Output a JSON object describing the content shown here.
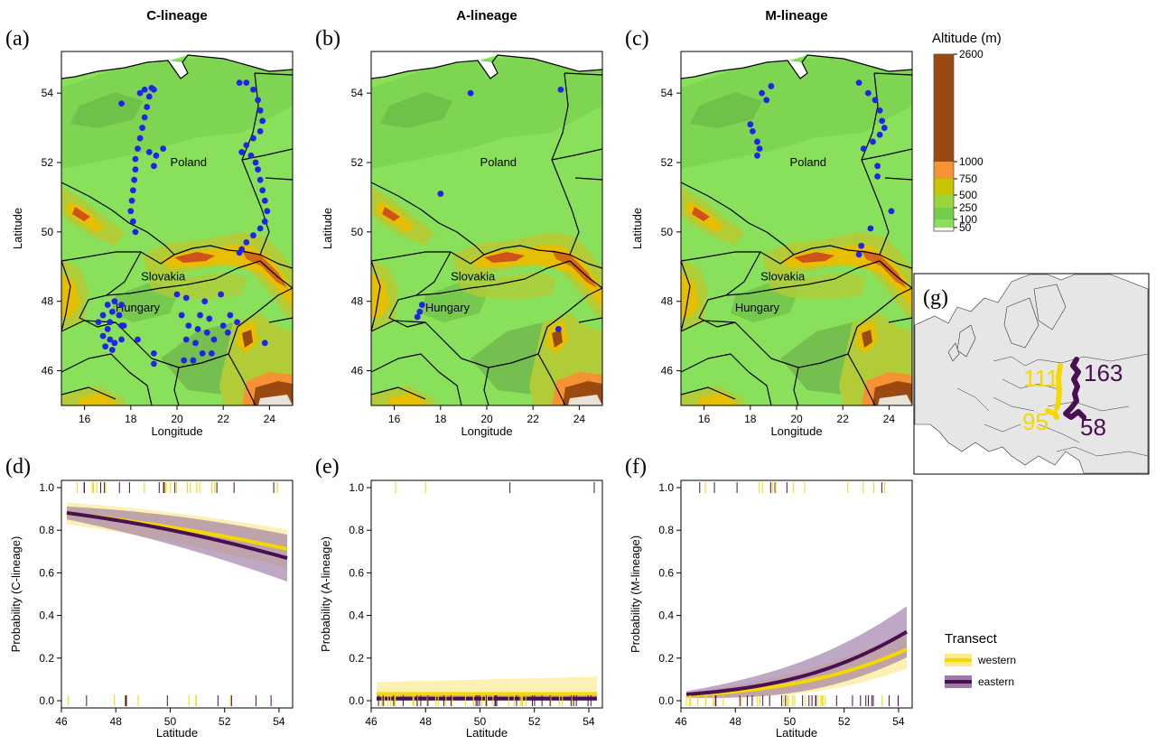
{
  "maps": [
    {
      "letter": "(a)",
      "title": "C-lineage",
      "points": [
        [
          17.6,
          53.7
        ],
        [
          18.4,
          54.0
        ],
        [
          18.6,
          54.1
        ],
        [
          18.9,
          54.15
        ],
        [
          19.0,
          54.1
        ],
        [
          18.8,
          53.9
        ],
        [
          18.7,
          53.6
        ],
        [
          18.6,
          53.3
        ],
        [
          18.5,
          53.0
        ],
        [
          18.4,
          52.7
        ],
        [
          18.3,
          52.4
        ],
        [
          18.2,
          52.1
        ],
        [
          18.2,
          51.8
        ],
        [
          18.15,
          51.5
        ],
        [
          18.1,
          51.2
        ],
        [
          18.05,
          50.9
        ],
        [
          18.0,
          50.6
        ],
        [
          18.1,
          50.3
        ],
        [
          18.2,
          50.0
        ],
        [
          18.8,
          52.3
        ],
        [
          19.1,
          52.2
        ],
        [
          19.4,
          52.4
        ],
        [
          19.0,
          51.9
        ],
        [
          22.7,
          54.3
        ],
        [
          23.0,
          54.3
        ],
        [
          23.3,
          54.1
        ],
        [
          23.5,
          53.8
        ],
        [
          23.6,
          53.5
        ],
        [
          23.7,
          53.2
        ],
        [
          23.6,
          52.9
        ],
        [
          23.3,
          52.7
        ],
        [
          23.0,
          52.5
        ],
        [
          22.8,
          52.3
        ],
        [
          23.2,
          52.2
        ],
        [
          23.4,
          52.0
        ],
        [
          23.5,
          51.8
        ],
        [
          23.6,
          51.5
        ],
        [
          23.7,
          51.2
        ],
        [
          23.8,
          50.9
        ],
        [
          23.9,
          50.6
        ],
        [
          23.8,
          50.3
        ],
        [
          23.6,
          50.1
        ],
        [
          23.3,
          49.9
        ],
        [
          23.0,
          49.7
        ],
        [
          22.8,
          49.5
        ],
        [
          22.7,
          49.4
        ],
        [
          17.0,
          47.9
        ],
        [
          17.3,
          48.0
        ],
        [
          17.6,
          47.9
        ],
        [
          17.2,
          47.7
        ],
        [
          17.5,
          47.6
        ],
        [
          16.8,
          47.6
        ],
        [
          17.1,
          47.4
        ],
        [
          16.6,
          47.4
        ],
        [
          17.0,
          47.2
        ],
        [
          16.8,
          47.0
        ],
        [
          17.1,
          46.9
        ],
        [
          17.3,
          46.8
        ],
        [
          17.6,
          46.9
        ],
        [
          17.2,
          46.6
        ],
        [
          16.9,
          46.7
        ],
        [
          17.6,
          47.3
        ],
        [
          20.0,
          48.2
        ],
        [
          21.2,
          48.0
        ],
        [
          21.9,
          48.2
        ],
        [
          20.4,
          48.1
        ],
        [
          21.0,
          47.6
        ],
        [
          21.4,
          47.5
        ],
        [
          20.5,
          47.3
        ],
        [
          20.9,
          47.2
        ],
        [
          21.3,
          47.1
        ],
        [
          21.6,
          46.9
        ],
        [
          22.0,
          47.3
        ],
        [
          22.3,
          47.6
        ],
        [
          22.6,
          47.4
        ],
        [
          21.1,
          46.5
        ],
        [
          20.7,
          46.3
        ],
        [
          20.3,
          46.3
        ],
        [
          20.2,
          47.6
        ],
        [
          21.5,
          46.5
        ],
        [
          19.0,
          46.2
        ],
        [
          19.0,
          46.5
        ],
        [
          20.4,
          46.9
        ],
        [
          20.8,
          46.8
        ],
        [
          22.2,
          47.1
        ],
        [
          23.8,
          46.8
        ],
        [
          17.7,
          47.3
        ],
        [
          18.3,
          46.9
        ]
      ]
    },
    {
      "letter": "(b)",
      "title": "A-lineage",
      "points": [
        [
          19.3,
          54.0
        ],
        [
          23.2,
          54.1
        ],
        [
          18.0,
          51.1
        ],
        [
          17.2,
          47.9
        ],
        [
          17.1,
          47.7
        ],
        [
          17.0,
          47.55
        ],
        [
          23.1,
          47.2
        ]
      ]
    },
    {
      "letter": "(c)",
      "title": "M-lineage",
      "points": [
        [
          18.5,
          54.0
        ],
        [
          18.9,
          54.2
        ],
        [
          18.7,
          53.8
        ],
        [
          18.0,
          53.1
        ],
        [
          18.1,
          52.9
        ],
        [
          18.3,
          52.6
        ],
        [
          18.4,
          52.4
        ],
        [
          18.3,
          52.2
        ],
        [
          22.7,
          54.3
        ],
        [
          23.1,
          54.0
        ],
        [
          23.4,
          53.8
        ],
        [
          23.6,
          53.5
        ],
        [
          23.7,
          53.2
        ],
        [
          23.8,
          53.0
        ],
        [
          23.6,
          52.8
        ],
        [
          23.3,
          52.6
        ],
        [
          22.9,
          52.4
        ],
        [
          23.5,
          51.9
        ],
        [
          23.5,
          51.6
        ],
        [
          24.1,
          50.6
        ],
        [
          23.2,
          50.1
        ],
        [
          22.8,
          49.6
        ],
        [
          22.7,
          49.35
        ]
      ]
    }
  ],
  "map_axes": {
    "xlabel": "Longitude",
    "ylabel": "Latitude",
    "xticks": [
      "16",
      "18",
      "20",
      "22",
      "24"
    ],
    "yticks": [
      "46",
      "48",
      "50",
      "52",
      "54"
    ],
    "countries": [
      "Poland",
      "Slovakia",
      "Hungary"
    ]
  },
  "altitude_legend": {
    "title": "Altitude (m)",
    "breaks": [
      "2600",
      "1000",
      "750",
      "500",
      "250",
      "100",
      "50"
    ],
    "colors": {
      "50": "#f4f9ec",
      "100": "#89e05a",
      "250": "#74cc4c",
      "500": "#b2cc38",
      "750": "#e6bf00",
      "1000": "#f59233",
      "2600": "#9a4a10"
    }
  },
  "inset": {
    "letter": "(g)",
    "western_counts": [
      "111",
      "95"
    ],
    "eastern_counts": [
      "163",
      "58"
    ]
  },
  "chart_data": [
    {
      "type": "line",
      "letter": "(d)",
      "ylabel": "Probability (C-lineage)",
      "xlabel": "Latitude",
      "xlim": [
        46,
        54.5
      ],
      "ylim": [
        0,
        1
      ],
      "x": [
        46.2,
        54.3
      ],
      "xticks": [
        "46",
        "48",
        "50",
        "52",
        "54"
      ],
      "yticks": [
        "0.0",
        "0.2",
        "0.4",
        "0.6",
        "0.8",
        "1.0"
      ],
      "series": [
        {
          "name": "western",
          "intercept": 8.16,
          "slope": -0.1336,
          "band": [
            0.05,
            0.09
          ]
        },
        {
          "name": "eastern",
          "intercept": 9.42,
          "slope": -0.1605,
          "band": [
            0.03,
            0.11
          ]
        }
      ]
    },
    {
      "type": "line",
      "letter": "(e)",
      "ylabel": "Probability (A-lineage)",
      "xlabel": "Latitude",
      "xlim": [
        46,
        54.5
      ],
      "ylim": [
        0,
        1
      ],
      "x": [
        46.2,
        54.3
      ],
      "xticks": [
        "46",
        "48",
        "50",
        "52",
        "54"
      ],
      "yticks": [
        "0.0",
        "0.2",
        "0.4",
        "0.6",
        "0.8",
        "1.0"
      ],
      "series": [
        {
          "name": "western",
          "intercept": -3.4,
          "slope": 0,
          "band": [
            0.055,
            0.08
          ]
        },
        {
          "name": "eastern",
          "intercept": -4.6,
          "slope": 0,
          "band": [
            0.012,
            0.025
          ]
        }
      ]
    },
    {
      "type": "line",
      "letter": "(f)",
      "ylabel": "Probability (M-lineage)",
      "xlabel": "Latitude",
      "xlim": [
        46,
        54.5
      ],
      "ylim": [
        0,
        1
      ],
      "x": [
        46.2,
        54.3
      ],
      "xticks": [
        "46",
        "48",
        "50",
        "52",
        "54"
      ],
      "yticks": [
        "0.0",
        "0.2",
        "0.4",
        "0.6",
        "0.8",
        "1.0"
      ],
      "series": [
        {
          "name": "western",
          "intercept": -18.0,
          "slope": 0.3104,
          "band": [
            0.01,
            0.09
          ]
        },
        {
          "name": "eastern",
          "intercept": -19.2,
          "slope": 0.34,
          "band": [
            0.015,
            0.12
          ]
        }
      ]
    }
  ],
  "transect_legend": {
    "title": "Transect",
    "items": [
      {
        "name": "western",
        "color": "#f5d800",
        "band": "#fbe98a"
      },
      {
        "name": "eastern",
        "color": "#4a0e52",
        "band": "#9d7aa8"
      }
    ]
  }
}
